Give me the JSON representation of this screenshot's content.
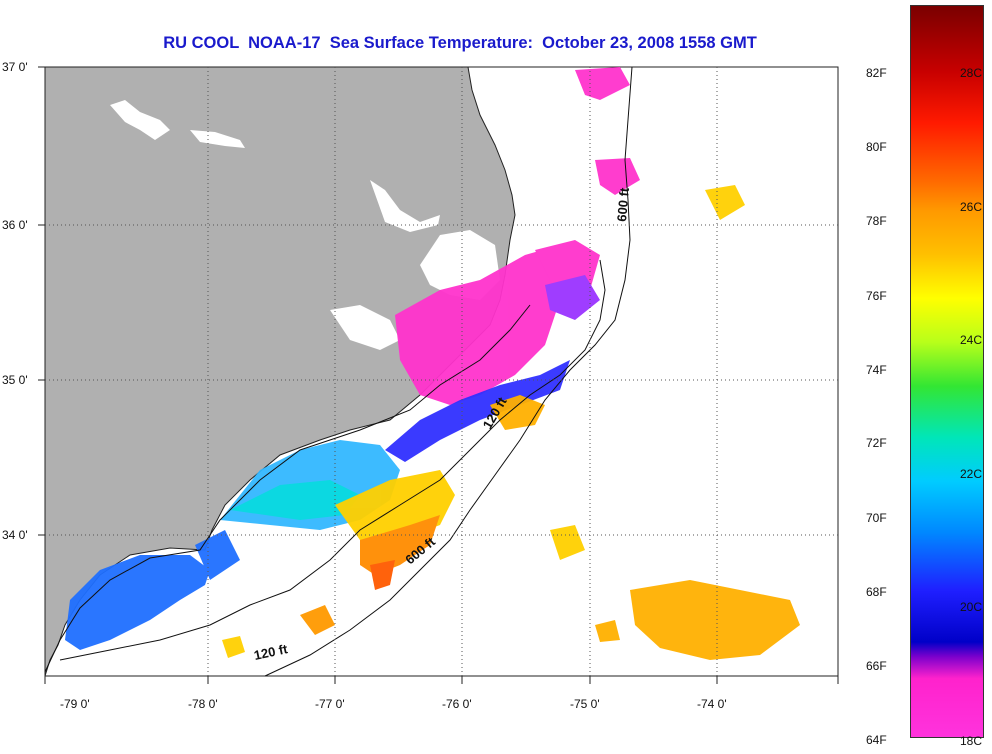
{
  "title": "RU COOL  NOAA-17  Sea Surface Temperature:  October 23, 2008 1558 GMT",
  "latitude_labels": [
    "37 0'",
    "36 0'",
    "35 0'",
    "34 0'"
  ],
  "longitude_labels": [
    "-79 0'",
    "-78 0'",
    "-77 0'",
    "-76 0'",
    "-75 0'",
    "-74 0'"
  ],
  "isobath_labels": [
    "600 ft",
    "120 ft",
    "600 ft",
    "120 ft"
  ],
  "colorbar": {
    "fahrenheit_labels": [
      "82F",
      "80F",
      "78F",
      "76F",
      "74F",
      "72F",
      "70F",
      "68F",
      "66F",
      "64F"
    ],
    "celsius_labels": [
      "28C",
      "26C",
      "24C",
      "22C",
      "20C",
      "18C"
    ]
  },
  "colors": {
    "land": "#b0b0b0",
    "title": "#1a1acc",
    "cold": "#ff33cc",
    "cool": "#1f6fff",
    "mid": "#ffd000",
    "warm": "#ff8c00"
  }
}
